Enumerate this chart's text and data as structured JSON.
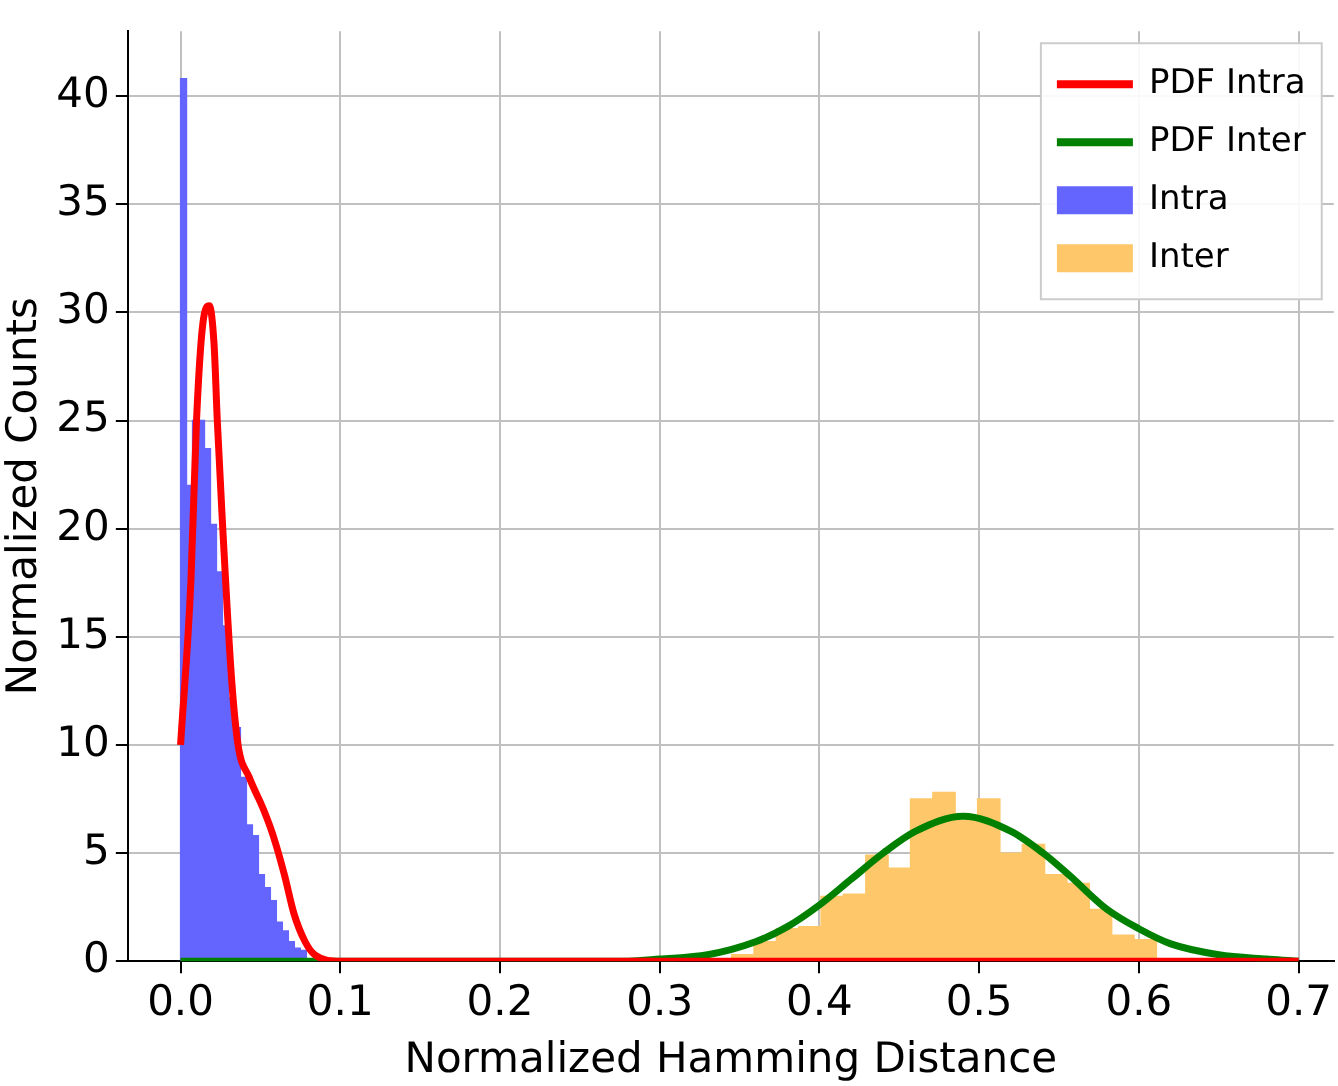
{
  "chart_data": {
    "type": "histogram",
    "xlabel": "Normalized Hamming Distance",
    "ylabel": "Normalized Counts",
    "xlim": [
      -0.033,
      0.722
    ],
    "ylim": [
      0,
      43
    ],
    "xticks": [
      {
        "value": 0,
        "label": "0.0"
      },
      {
        "value": 0.1,
        "label": "0.1"
      },
      {
        "value": 0.2,
        "label": "0.2"
      },
      {
        "value": 0.3,
        "label": "0.3"
      },
      {
        "value": 0.4,
        "label": "0.4"
      },
      {
        "value": 0.5,
        "label": "0.5"
      },
      {
        "value": 0.6,
        "label": "0.6"
      },
      {
        "value": 0.7,
        "label": "0.7"
      }
    ],
    "yticks": [
      0,
      5,
      10,
      15,
      20,
      25,
      30,
      35,
      40
    ],
    "grid": true,
    "legend": "top right",
    "series": [
      {
        "name": "PDF Intra",
        "type": "line",
        "color": "#ff0000",
        "x": [
          0,
          0.0065,
          0.01,
          0.014,
          0.018,
          0.021,
          0.023,
          0.026,
          0.032,
          0.036,
          0.043,
          0.052,
          0.058,
          0.065,
          0.071,
          0.078,
          0.084,
          0.1,
          0.7
        ],
        "values": [
          10,
          17.6,
          25,
          29.5,
          30.3,
          28.5,
          25,
          20.6,
          13,
          10,
          8.5,
          7,
          5.8,
          4,
          2.2,
          0.9,
          0.3,
          0,
          0
        ]
      },
      {
        "name": "PDF Inter",
        "type": "line",
        "color": "#008000",
        "x": [
          0,
          0.28,
          0.3,
          0.33,
          0.36,
          0.38,
          0.4,
          0.42,
          0.44,
          0.46,
          0.49,
          0.52,
          0.54,
          0.556,
          0.58,
          0.6,
          0.62,
          0.65,
          0.68,
          0.7
        ],
        "values": [
          0,
          0,
          0.1,
          0.3,
          0.9,
          1.6,
          2.6,
          3.8,
          5,
          6,
          6.7,
          6,
          5,
          4,
          2.4,
          1.5,
          0.8,
          0.3,
          0.1,
          0
        ]
      },
      {
        "name": "Intra",
        "type": "histogram",
        "color": "#6464ff",
        "bins": [
          0,
          0.00375,
          0.0075,
          0.01125,
          0.015,
          0.01875,
          0.0225,
          0.02625,
          0.03,
          0.03375,
          0.0375,
          0.04125,
          0.045,
          0.04875,
          0.0525,
          0.05625,
          0.06,
          0.06375,
          0.0675,
          0.07125,
          0.075,
          0.07875,
          0.0825,
          0.08625,
          0.09,
          0.09375
        ],
        "values": [
          40.8,
          22,
          25,
          25,
          23.7,
          20.2,
          18,
          15.5,
          12.2,
          10.8,
          8.5,
          6.3,
          5.8,
          4,
          3.4,
          2.8,
          1.8,
          1.4,
          0.9,
          0.6,
          0.5,
          null,
          null,
          null,
          null
        ]
      },
      {
        "name": "Inter",
        "type": "histogram",
        "color": "#fdc76a",
        "bins": [
          0.345,
          0.359,
          0.373,
          0.387,
          0.401,
          0.415,
          0.429,
          0.443,
          0.457,
          0.471,
          0.485,
          0.499,
          0.513,
          0.527,
          0.541,
          0.555,
          0.569,
          0.583,
          0.597,
          0.611
        ],
        "values": [
          0.3,
          0.9,
          1.5,
          1.6,
          3,
          3.1,
          4.9,
          4.3,
          7.5,
          7.8,
          6.5,
          7.5,
          5,
          5.4,
          4,
          3.6,
          2.4,
          1.2,
          1
        ]
      }
    ]
  }
}
